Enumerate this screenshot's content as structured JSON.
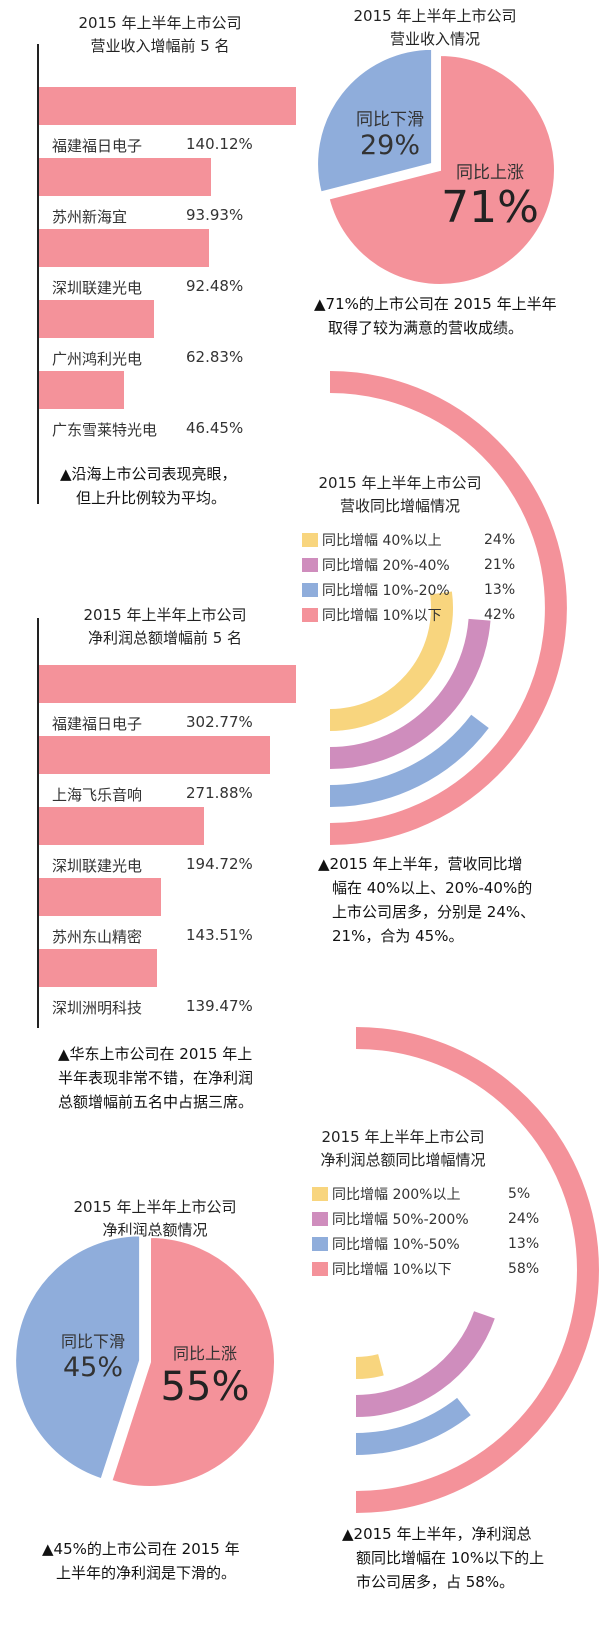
{
  "colors": {
    "pink": "#f4929a",
    "blue": "#8faddb",
    "purple": "#cf8dbd",
    "yellow": "#f8d57e"
  },
  "revenue_top5": {
    "title_line1": "2015 年上半年上市公司",
    "title_line2": "营业收入增幅前 5 名",
    "note_line1": "▲沿海上市公司表现亮眼，",
    "note_line2": "但上升比例较为平均。"
  },
  "revenue_pie": {
    "title_line1": "2015 年上半年上市公司",
    "title_line2": "营业收入情况",
    "down_label": "同比下滑",
    "down_pct": "29%",
    "up_label": "同比上涨",
    "up_pct": "71%",
    "note_line1": "▲71%的上市公司在 2015 年上半年",
    "note_line2": "取得了较为满意的营收成绩。"
  },
  "revenue_growth": {
    "title_line1": "2015 年上半年上市公司",
    "title_line2": "营收同比增幅情况",
    "legend": [
      {
        "label": "同比增幅 40%以上",
        "pct": "24%"
      },
      {
        "label": "同比增幅 20%-40%",
        "pct": "21%"
      },
      {
        "label": "同比增幅 10%-20%",
        "pct": "13%"
      },
      {
        "label": "同比增幅 10%以下",
        "pct": "42%"
      }
    ],
    "note_line1": "▲2015 年上半年，营收同比增",
    "note_line2": "幅在 40%以上、20%-40%的",
    "note_line3": "上市公司居多，分别是 24%、",
    "note_line4": "21%，合为 45%。"
  },
  "profit_top5": {
    "title_line1": "2015 年上半年上市公司",
    "title_line2": "净利润总额增幅前 5 名",
    "note_line1": "▲华东上市公司在 2015 年上",
    "note_line2": "半年表现非常不错，在净利润",
    "note_line3": "总额增幅前五名中占据三席。"
  },
  "profit_growth": {
    "title_line1": "2015 年上半年上市公司",
    "title_line2": "净利润总额同比增幅情况",
    "legend": [
      {
        "label": "同比增幅 200%以上",
        "pct": "5%"
      },
      {
        "label": "同比增幅 50%-200%",
        "pct": "24%"
      },
      {
        "label": "同比增幅 10%-50%",
        "pct": "13%"
      },
      {
        "label": "同比增幅 10%以下",
        "pct": "58%"
      }
    ],
    "note_line1": "▲2015 年上半年，净利润总",
    "note_line2": "额同比增幅在 10%以下的上",
    "note_line3": "市公司居多，占 58%。"
  },
  "profit_pie": {
    "title_line1": "2015 年上半年上市公司",
    "title_line2": "净利润总额情况",
    "down_label": "同比下滑",
    "down_pct": "45%",
    "up_label": "同比上涨",
    "up_pct": "55%",
    "note_line1": "▲45%的上市公司在 2015 年",
    "note_line2": "上半年的净利润是下滑的。"
  },
  "chart_data": [
    {
      "type": "bar",
      "title": "2015 年上半年上市公司营业收入增幅前 5 名",
      "categories": [
        "福建福日电子",
        "苏州新海宜",
        "深圳联建光电",
        "广州鸿利光电",
        "广东雪莱特光电"
      ],
      "values": [
        140.12,
        93.93,
        92.48,
        62.83,
        46.45
      ],
      "value_labels": [
        "140.12%",
        "93.93%",
        "92.48%",
        "62.83%",
        "46.45%"
      ]
    },
    {
      "type": "pie",
      "title": "2015 年上半年上市公司营业收入情况",
      "categories": [
        "同比下滑",
        "同比上涨"
      ],
      "values": [
        29,
        71
      ]
    },
    {
      "type": "bar",
      "title": "2015 年上半年上市公司营收同比增幅情况",
      "categories": [
        "同比增幅 40%以上",
        "同比增幅 20%-40%",
        "同比增幅 10%-20%",
        "同比增幅 10%以下"
      ],
      "values": [
        24,
        21,
        13,
        42
      ]
    },
    {
      "type": "bar",
      "title": "2015 年上半年上市公司净利润总额增幅前 5 名",
      "categories": [
        "福建福日电子",
        "上海飞乐音响",
        "深圳联建光电",
        "苏州东山精密",
        "深圳洲明科技"
      ],
      "values": [
        302.77,
        271.88,
        194.72,
        143.51,
        139.47
      ],
      "value_labels": [
        "302.77%",
        "271.88%",
        "194.72%",
        "143.51%",
        "139.47%"
      ]
    },
    {
      "type": "bar",
      "title": "2015 年上半年上市公司净利润总额同比增幅情况",
      "categories": [
        "同比增幅 200%以上",
        "同比增幅 50%-200%",
        "同比增幅 10%-50%",
        "同比增幅 10%以下"
      ],
      "values": [
        5,
        24,
        13,
        58
      ]
    },
    {
      "type": "pie",
      "title": "2015 年上半年上市公司净利润总额情况",
      "categories": [
        "同比下滑",
        "同比上涨"
      ],
      "values": [
        45,
        55
      ]
    }
  ]
}
